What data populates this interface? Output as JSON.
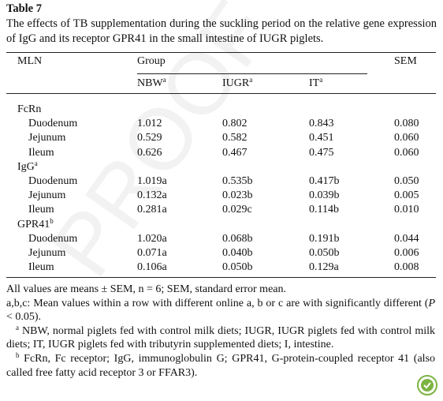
{
  "title": "Table 7",
  "caption": "The effects of TB supplementation during the suckling period on the relative gene expression of IgG and its receptor GPR41 in the small intestine of IUGR piglets.",
  "watermark": "PROOF",
  "table": {
    "header": {
      "stub": "MLN",
      "group": "Group",
      "sem": "SEM",
      "columns": [
        {
          "text": "NBW",
          "sup": "a"
        },
        {
          "text": "IUGR",
          "sup": "a"
        },
        {
          "text": "IT",
          "sup": "a"
        }
      ]
    },
    "sections": [
      {
        "label": "FcRn",
        "rows": [
          {
            "label": "Duodenum",
            "values": [
              "1.012",
              "0.802",
              "0.843",
              "0.080"
            ]
          },
          {
            "label": "Jejunum",
            "values": [
              "0.529",
              "0.582",
              "0.451",
              "0.060"
            ]
          },
          {
            "label": "Ileum",
            "values": [
              "0.626",
              "0.467",
              "0.475",
              "0.060"
            ]
          }
        ]
      },
      {
        "label": "IgG",
        "sup": "a",
        "rows": [
          {
            "label": "Duodenum",
            "values": [
              "1.019a",
              "0.535b",
              "0.417b",
              "0.050"
            ]
          },
          {
            "label": "Jejunum",
            "values": [
              "0.132a",
              "0.023b",
              "0.039b",
              "0.005"
            ]
          },
          {
            "label": "Ileum",
            "values": [
              "0.281a",
              "0.029c",
              "0.114b",
              "0.010"
            ]
          }
        ]
      },
      {
        "label": "GPR41",
        "sup": "b",
        "rows": [
          {
            "label": "Duodenum",
            "values": [
              "1.020a",
              "0.068b",
              "0.191b",
              "0.044"
            ]
          },
          {
            "label": "Jejunum",
            "values": [
              "0.071a",
              "0.040b",
              "0.050b",
              "0.006"
            ]
          },
          {
            "label": "Ileum",
            "values": [
              "0.106a",
              "0.050b",
              "0.129a",
              "0.008"
            ]
          }
        ]
      }
    ]
  },
  "notes": [
    {
      "text": "All values are means ± SEM, n = 6; SEM, standard error mean."
    },
    {
      "parts": [
        "a,b,c: Mean values within a row with different online a, b or c are with significantly different (",
        "P",
        " < 0.05)."
      ]
    },
    {
      "sup": "a",
      "text": "NBW, normal piglets fed with control milk diets; IUGR, IUGR piglets fed with control milk diets; IT, IUGR piglets fed with tributyrin supplemented diets; I, intestine."
    },
    {
      "sup": "b",
      "text": "FcRn, Fc receptor; IgG, immunoglobulin G; GPR41, G-protein-coupled receptor 41 (also called free fatty acid receptor 3 or FFAR3)."
    }
  ]
}
